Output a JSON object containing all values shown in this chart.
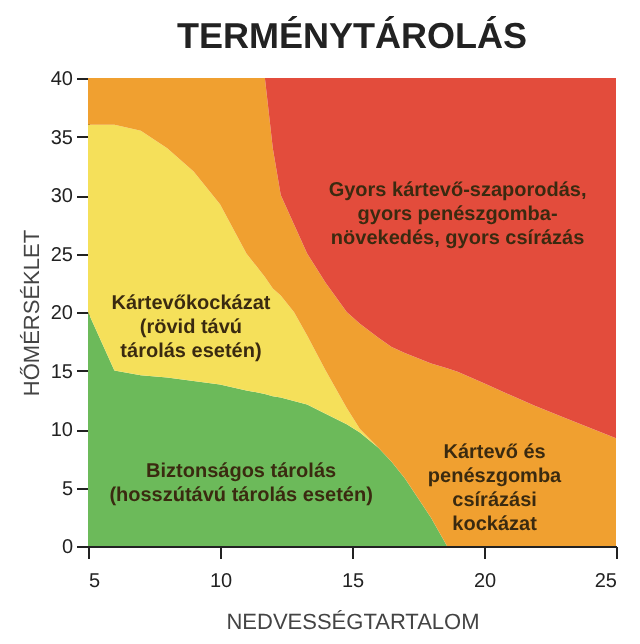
{
  "chart_data": {
    "type": "area",
    "stacked": true,
    "title": "TERMÉNYTÁROLÁS",
    "xlabel": "NEDVESSÉGTARTALOM",
    "ylabel": "HŐMÉRSÉKLET",
    "xlim": [
      5,
      25
    ],
    "ylim": [
      0,
      40
    ],
    "xticks": [
      5,
      10,
      15,
      20,
      25
    ],
    "yticks": [
      0,
      5,
      10,
      15,
      20,
      25,
      30,
      35,
      40
    ],
    "grid": false,
    "legend": false,
    "x": [
      5,
      5.5,
      6,
      7,
      8,
      9,
      10,
      11,
      11.7,
      12,
      12.3,
      12.8,
      13.3,
      14,
      14.8,
      15.3,
      16,
      16.5,
      17,
      18,
      18.6,
      19,
      20,
      21.9,
      23,
      25
    ],
    "series": [
      {
        "color": "#6cba5a",
        "values": [
          20,
          17.5,
          15,
          14.6,
          14.4,
          14.1,
          13.8,
          13.3,
          13,
          12.8,
          12.7,
          12.4,
          12.1,
          11.3,
          10.4,
          9.7,
          8.4,
          7.2,
          5.8,
          2.4,
          0,
          0,
          0,
          0,
          0,
          0
        ]
      },
      {
        "color": "#f5e05a",
        "values": [
          16,
          18.5,
          21,
          20.9,
          19.6,
          17.9,
          15.4,
          11.7,
          10,
          9.2,
          8.7,
          7.6,
          5.9,
          3.7,
          1.4,
          0.3,
          0,
          0,
          0,
          0,
          0,
          0,
          0,
          0,
          0,
          0
        ]
      },
      {
        "color": "#f0a030",
        "values": [
          4,
          4,
          4,
          4.5,
          6,
          8,
          10.8,
          15,
          17,
          12,
          8.6,
          7.5,
          7,
          7.5,
          8.2,
          9,
          9.4,
          9.8,
          10.7,
          13.2,
          15.2,
          14.9,
          13.9,
          12,
          11,
          9.2
        ]
      },
      {
        "color": "#e34c3c",
        "values": [
          0,
          0,
          0,
          0,
          0,
          0,
          0,
          0,
          0,
          6,
          10,
          12.5,
          15,
          17.5,
          20,
          21,
          22.2,
          23,
          23.5,
          24.4,
          24.8,
          25.1,
          26.1,
          28,
          29,
          30.8
        ]
      }
    ],
    "annotations": [
      "Biztonságos tárolás\n(hosszútávú tárolás esetén)",
      "Kártevőkockázat\n(rövid távú\ntárolás esetén)",
      "Kártevő és\npenészgomba\ncsírázási\nkockázat",
      "Gyors kártevő-szaporodás,\ngyors penészgomba-\nnövekedés, gyors csírázás"
    ]
  }
}
